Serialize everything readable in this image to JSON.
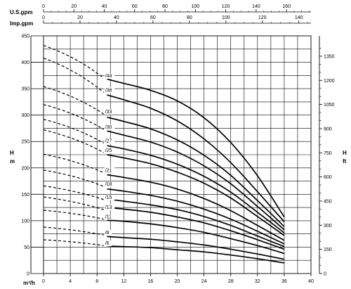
{
  "chart_data": {
    "type": "line",
    "title": "",
    "xlabel": "m³/h",
    "ylabel_left": "H\nm",
    "ylabel_right": "H\nft",
    "xlim": [
      0,
      40
    ],
    "ylim": [
      0,
      450
    ],
    "x_ticks": [
      0,
      4,
      8,
      12,
      16,
      20,
      24,
      28,
      32,
      36,
      40
    ],
    "y_ticks": [
      0,
      50,
      100,
      150,
      200,
      250,
      300,
      350,
      400,
      450
    ],
    "grid": true,
    "top_axes": [
      {
        "label": "U.S.gpm",
        "ticks": [
          0,
          20,
          40,
          60,
          80,
          100,
          120,
          140,
          160
        ],
        "per_m3h": 4.4029
      },
      {
        "label": "Imp.gpm",
        "ticks": [
          0,
          20,
          40,
          60,
          80,
          100,
          120,
          140
        ],
        "per_m3h": 3.6662
      }
    ],
    "right_axis": {
      "label": "ft",
      "ticks": [
        0,
        150,
        300,
        450,
        600,
        750,
        900,
        1050,
        1200,
        1350
      ],
      "per_m": 3.28084
    },
    "series": [
      {
        "name": "/44",
        "dashed": [
          [
            0,
            432
          ],
          [
            9,
            370
          ]
        ],
        "x": [
          9.5,
          12,
          16,
          20,
          24,
          28,
          32,
          36
        ],
        "y": [
          368,
          360,
          347,
          327,
          295,
          248,
          185,
          107
        ]
      },
      {
        "name": "/38",
        "dashed": [
          [
            0,
            408
          ],
          [
            9,
            343
          ]
        ],
        "x": [
          9.5,
          12,
          16,
          20,
          24,
          28,
          32,
          36
        ],
        "y": [
          338,
          329,
          313,
          289,
          255,
          210,
          155,
          98
        ]
      },
      {
        "name": "/33",
        "dashed": [
          [
            0,
            354
          ],
          [
            9,
            302
          ]
        ],
        "x": [
          9.5,
          12,
          16,
          20,
          24,
          28,
          32,
          36
        ],
        "y": [
          296,
          288,
          274,
          253,
          224,
          186,
          138,
          89
        ]
      },
      {
        "name": "/30",
        "dashed": [
          [
            0,
            320
          ],
          [
            9,
            273
          ]
        ],
        "x": [
          9.5,
          12,
          16,
          20,
          24,
          28,
          32,
          36
        ],
        "y": [
          270,
          262,
          249,
          230,
          204,
          170,
          127,
          83
        ]
      },
      {
        "name": "/27",
        "dashed": [
          [
            0,
            292
          ],
          [
            9,
            247
          ]
        ],
        "x": [
          9.5,
          12,
          16,
          20,
          24,
          28,
          32,
          36
        ],
        "y": [
          242,
          236,
          224,
          207,
          184,
          154,
          116,
          77
        ]
      },
      {
        "name": "/25",
        "dashed": [
          [
            0,
            272
          ],
          [
            9,
            229
          ]
        ],
        "x": [
          9.5,
          12,
          16,
          20,
          24,
          28,
          32,
          36
        ],
        "y": [
          225,
          219,
          208,
          192,
          171,
          143,
          108,
          72
        ]
      },
      {
        "name": "/21",
        "dashed": [
          [
            0,
            226
          ],
          [
            9,
            191
          ]
        ],
        "x": [
          9.5,
          12,
          16,
          20,
          24,
          28,
          32,
          36
        ],
        "y": [
          187,
          182,
          173,
          160,
          142,
          119,
          91,
          63
        ]
      },
      {
        "name": "/18",
        "dashed": [
          [
            0,
            196
          ],
          [
            9,
            165
          ]
        ],
        "x": [
          9.5,
          12,
          16,
          20,
          24,
          28,
          32,
          36
        ],
        "y": [
          160,
          156,
          148,
          137,
          122,
          103,
          80,
          56
        ]
      },
      {
        "name": "/15",
        "dashed": [
          [
            0,
            166
          ],
          [
            9,
            140
          ]
        ],
        "x": [
          9.5,
          12,
          16,
          20,
          24,
          28,
          32,
          36
        ],
        "y": [
          141,
          137,
          130,
          121,
          108,
          91,
          71,
          51
        ]
      },
      {
        "name": "/13",
        "dashed": [
          [
            0,
            145
          ],
          [
            9,
            121
          ]
        ],
        "x": [
          9.5,
          12,
          16,
          20,
          24,
          28,
          32,
          36
        ],
        "y": [
          125,
          122,
          116,
          107,
          96,
          81,
          64,
          46
        ]
      },
      {
        "name": "/11",
        "dashed": [
          [
            0,
            120
          ],
          [
            9,
            103
          ]
        ],
        "x": [
          9.5,
          12,
          16,
          20,
          24,
          28,
          32,
          36
        ],
        "y": [
          101,
          99,
          94,
          87,
          78,
          66,
          53,
          38
        ]
      },
      {
        "name": "/8",
        "dashed": [
          [
            0,
            88
          ],
          [
            9,
            73
          ]
        ],
        "x": [
          9.5,
          12,
          16,
          20,
          24,
          28,
          32,
          36
        ],
        "y": [
          70,
          68,
          65,
          60,
          54,
          46,
          37,
          27
        ]
      },
      {
        "name": "/6",
        "dashed": [
          [
            0,
            64
          ],
          [
            9,
            53
          ]
        ],
        "x": [
          9.5,
          12,
          16,
          20,
          24,
          28,
          32,
          36
        ],
        "y": [
          52,
          51,
          49,
          45,
          41,
          35,
          28,
          20
        ]
      }
    ]
  }
}
